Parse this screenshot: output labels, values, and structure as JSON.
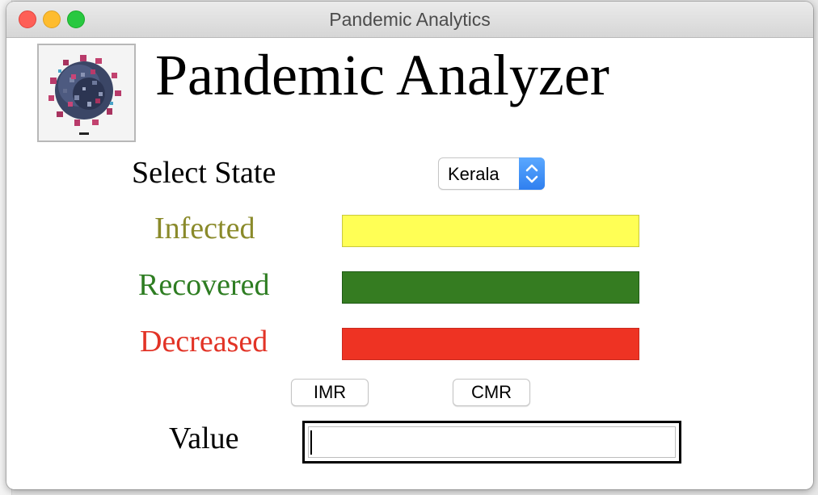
{
  "window": {
    "title": "Pandemic Analytics"
  },
  "header": {
    "heading": "Pandemic Analyzer",
    "logo_icon": "virus-icon"
  },
  "form": {
    "select_state_label": "Select State",
    "state_selected": "Kerala",
    "infected_label": "Infected",
    "recovered_label": "Recovered",
    "decreased_label": "Decreased",
    "value_label": "Value",
    "value": ""
  },
  "buttons": {
    "imr": "IMR",
    "cmr": "CMR"
  },
  "colors": {
    "infected": "#ffff55",
    "recovered": "#357c21",
    "decreased": "#ee3323",
    "infected_label": "#8a8a2a",
    "recovered_label": "#2e7d22",
    "decreased_label": "#e23326"
  }
}
